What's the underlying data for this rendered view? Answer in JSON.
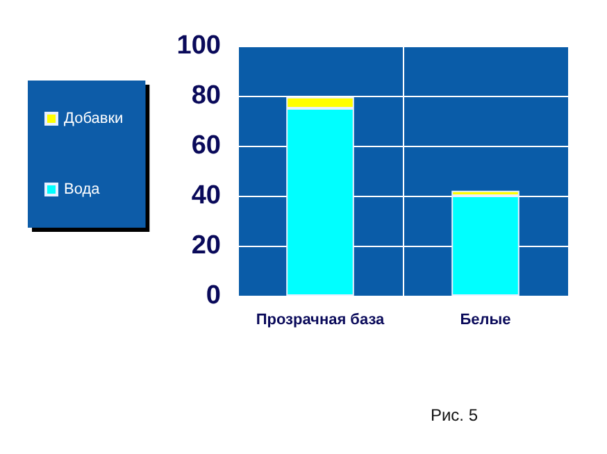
{
  "chart_data": {
    "type": "bar",
    "stacked": true,
    "categories": [
      "Прозрачная база",
      "Белые"
    ],
    "series": [
      {
        "name": "Вода",
        "color": "#00ffff",
        "values": [
          75,
          40
        ]
      },
      {
        "name": "Добавки",
        "color": "#ffff00",
        "values": [
          4.5,
          2
        ]
      }
    ],
    "ylim": [
      0,
      100
    ],
    "yticks": [
      0,
      20,
      40,
      60,
      80,
      100
    ],
    "grid": true,
    "legend": "left",
    "annotations": [
      "Рис. 5"
    ]
  }
}
